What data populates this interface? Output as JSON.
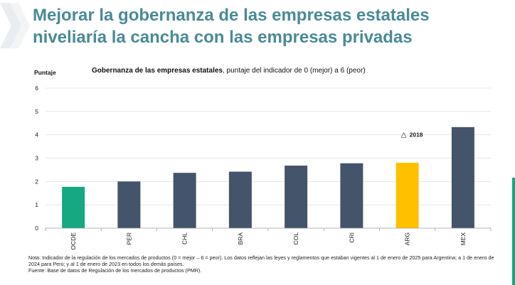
{
  "headline": "Mejorar la gobernanza de las empresas estatales niveliaría la cancha con las empresas privadas",
  "chart_data": {
    "type": "bar",
    "title_bold": "Gobernanza de las empresas estatales",
    "title_rest": ", puntaje del indicador de 0 (mejor) a 6 (peor)",
    "ylabel": "Puntaje",
    "xlabel": "",
    "ylim": [
      0,
      6
    ],
    "yticks": [
      0,
      1,
      2,
      3,
      4,
      5,
      6
    ],
    "grid": true,
    "categories": [
      "OCDE",
      "PER",
      "CHL",
      "BRA",
      "COL",
      "CRI",
      "ARG",
      "MEX"
    ],
    "values": [
      1.77,
      2.0,
      2.37,
      2.42,
      2.68,
      2.78,
      2.8,
      4.33
    ],
    "bar_colors": [
      "#15a881",
      "#44546a",
      "#44546a",
      "#44546a",
      "#44546a",
      "#44546a",
      "#ffc000",
      "#44546a"
    ],
    "annotation": {
      "symbol": "△",
      "label": "2018",
      "value": 4.0,
      "category": "ARG"
    }
  },
  "colors": {
    "headline": "#4a8a96",
    "benchmark_bar": "#15a881",
    "highlight_bar": "#ffc000",
    "country_bar": "#44546a",
    "accent": "#16a67e"
  },
  "note": "Nota: Indicador de la regulación de los mercados de productos (0 = mejor – 6 = peor). Los datos reflejan las leyes y reglamentos que estaban vigentes al 1 de enero de 2025 para Argentina; a 1 de enero de 2024 para Perú; y al 1 de enero de 2023 en todos los demás países.",
  "source": "Fuente: Base de datos de Regulación de los mercados de productos (PMR)."
}
